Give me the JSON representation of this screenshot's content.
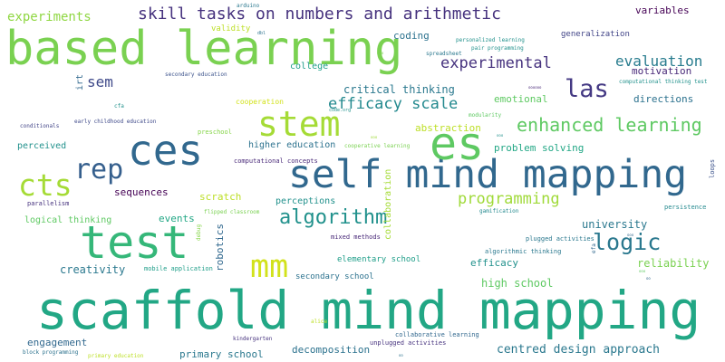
{
  "words": [
    {
      "text": "scaffold mind mapping",
      "color": "#22a785"
    },
    {
      "text": "based learning",
      "color": "#7ad151"
    },
    {
      "text": "self mind mapping",
      "color": "#31688e"
    },
    {
      "text": "ces",
      "color": "#31688e"
    },
    {
      "text": "es",
      "color": "#5ec962"
    },
    {
      "text": "test",
      "color": "#35b779"
    },
    {
      "text": "stem",
      "color": "#a5db36"
    },
    {
      "text": "cts",
      "color": "#a5db36"
    },
    {
      "text": "rep",
      "color": "#355f8d"
    },
    {
      "text": "mm",
      "color": "#d2e21b"
    },
    {
      "text": "logic",
      "color": "#2a788e"
    },
    {
      "text": "algorithm",
      "color": "#21918c"
    },
    {
      "text": "las",
      "color": "#443983"
    },
    {
      "text": "skill tasks on numbers and arithmetic",
      "color": "#46327e"
    },
    {
      "text": "enhanced learning",
      "color": "#5ec962"
    },
    {
      "text": "efficacy scale",
      "color": "#23898e"
    },
    {
      "text": "experimental",
      "color": "#46327e"
    },
    {
      "text": "evaluation",
      "color": "#287c8e"
    },
    {
      "text": "programming",
      "color": "#a0da39"
    },
    {
      "text": "experiments",
      "color": "#90d743"
    },
    {
      "text": "sem",
      "color": "#3e4989"
    },
    {
      "text": "variables",
      "color": "#440154"
    },
    {
      "text": "centred design approach",
      "color": "#2a788e"
    },
    {
      "text": "high school",
      "color": "#5ec962"
    },
    {
      "text": "university",
      "color": "#2a788e"
    },
    {
      "text": "reliability",
      "color": "#7ad151"
    },
    {
      "text": "creativity",
      "color": "#2a788e"
    },
    {
      "text": "engagement",
      "color": "#31688e"
    },
    {
      "text": "critical thinking",
      "color": "#2a788e"
    },
    {
      "text": "motivation",
      "color": "#482878"
    },
    {
      "text": "directions",
      "color": "#2c728e"
    },
    {
      "text": "coding",
      "color": "#2c728e"
    },
    {
      "text": "emotional",
      "color": "#5ec962"
    },
    {
      "text": "abstraction",
      "color": "#bddf26"
    },
    {
      "text": "problem solving",
      "color": "#22a785"
    },
    {
      "text": "higher education",
      "color": "#2c728e"
    },
    {
      "text": "scratch",
      "color": "#bddf26"
    },
    {
      "text": "perceptions",
      "color": "#21918c"
    },
    {
      "text": "sequences",
      "color": "#440154"
    },
    {
      "text": "events",
      "color": "#22a785"
    },
    {
      "text": "efficacy",
      "color": "#21918c"
    },
    {
      "text": "primary school",
      "color": "#2a788e"
    },
    {
      "text": "decomposition",
      "color": "#2c728e"
    },
    {
      "text": "college",
      "color": "#1f9e89"
    },
    {
      "text": "robotics",
      "color": "#31688e"
    },
    {
      "text": "collaboration",
      "color": "#a5db36"
    },
    {
      "text": "perceived",
      "color": "#21918c"
    },
    {
      "text": "logical thinking",
      "color": "#5ec962"
    },
    {
      "text": "elementary school",
      "color": "#1f9e89"
    },
    {
      "text": "secondary school",
      "color": "#2c728e"
    },
    {
      "text": "generalization",
      "color": "#414487"
    },
    {
      "text": "irt",
      "color": "#31688e"
    },
    {
      "text": "validity",
      "color": "#bddf26"
    },
    {
      "text": "cooperation",
      "color": "#d2e21b"
    },
    {
      "text": "preschool",
      "color": "#86d549"
    },
    {
      "text": "computational concepts",
      "color": "#482878"
    },
    {
      "text": "mixed methods",
      "color": "#482878"
    },
    {
      "text": "algorithmic thinking",
      "color": "#2a788e"
    },
    {
      "text": "plugged activities",
      "color": "#2a788e"
    },
    {
      "text": "mobile application",
      "color": "#1f9e89"
    },
    {
      "text": "parallelism",
      "color": "#46327e"
    },
    {
      "text": "loops",
      "color": "#3b528b"
    },
    {
      "text": "persistence",
      "color": "#23898e"
    },
    {
      "text": "gamification",
      "color": "#23898e"
    },
    {
      "text": "collaborative learning",
      "color": "#31688e"
    },
    {
      "text": "unplugged activities",
      "color": "#46327e"
    },
    {
      "text": "kindergarten",
      "color": "#46327e"
    },
    {
      "text": "block programming",
      "color": "#2c728e"
    },
    {
      "text": "primary education",
      "color": "#bddf26"
    },
    {
      "text": "arduino",
      "color": "#2a788e"
    },
    {
      "text": "dbl",
      "color": "#2c728e"
    },
    {
      "text": "spreadsheet",
      "color": "#2a788e"
    },
    {
      "text": "personalized learning",
      "color": "#21918c"
    },
    {
      "text": "pair programming",
      "color": "#21918c"
    },
    {
      "text": "computational thinking test",
      "color": "#21918c"
    },
    {
      "text": "secondary education",
      "color": "#3b528b"
    },
    {
      "text": "early childhood education",
      "color": "#3e4989"
    },
    {
      "text": "conditionals",
      "color": "#414487"
    },
    {
      "text": "cfa",
      "color": "#21918c"
    },
    {
      "text": "code.org",
      "color": "#21918c"
    },
    {
      "text": "modularity",
      "color": "#5ec962"
    },
    {
      "text": "cooperative learning",
      "color": "#7ad151"
    },
    {
      "text": "flipped classroom",
      "color": "#7ad151"
    },
    {
      "text": "debug",
      "color": "#86d549"
    },
    {
      "text": "efa",
      "color": "#31688e"
    },
    {
      "text": "alice",
      "color": "#bddf26"
    },
    {
      "text": "ooo",
      "color": "#a0da39"
    },
    {
      "text": "ooo",
      "color": "#21918c"
    },
    {
      "text": "ooo",
      "color": "#31688e"
    },
    {
      "text": "oooooo",
      "color": "#482878"
    },
    {
      "text": "ooo",
      "color": "#7ad151"
    },
    {
      "text": "oo",
      "color": "#2c728e"
    },
    {
      "text": "ooo",
      "color": "#5ec962"
    },
    {
      "text": "oo",
      "color": "#31688e"
    }
  ]
}
